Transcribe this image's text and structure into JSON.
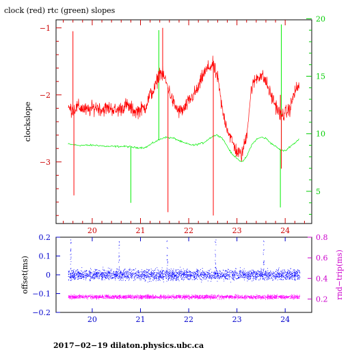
{
  "chart_data": [
    {
      "type": "line",
      "title": "clock (red) rtc (green) slopes",
      "ylabel": "clockslope",
      "x_ticks": [
        20,
        21,
        22,
        23,
        24
      ],
      "xlim": [
        19.25,
        24.55
      ],
      "y_left_ticks": [
        -1,
        -2,
        -3
      ],
      "ylim_left": [
        -3.92,
        -0.88
      ],
      "y_right_ticks": [
        5,
        10,
        15,
        20
      ],
      "ylim_right": [
        2.2,
        19.9
      ],
      "series": [
        {
          "name": "clock",
          "axis": "left",
          "color": "#ff0000",
          "x": [
            19.5,
            19.6,
            19.7,
            19.8,
            19.9,
            20.0,
            20.1,
            20.2,
            20.3,
            20.4,
            20.5,
            20.6,
            20.7,
            20.8,
            20.9,
            21.0,
            21.1,
            21.2,
            21.3,
            21.4,
            21.5,
            21.6,
            21.7,
            21.8,
            21.9,
            22.0,
            22.1,
            22.2,
            22.3,
            22.4,
            22.5,
            22.6,
            22.7,
            22.8,
            22.9,
            23.0,
            23.1,
            23.2,
            23.3,
            23.4,
            23.5,
            23.6,
            23.7,
            23.8,
            23.9,
            24.0,
            24.1,
            24.2,
            24.3
          ],
          "y": [
            -2.2,
            -2.22,
            -2.18,
            -2.2,
            -2.24,
            -2.2,
            -2.18,
            -2.22,
            -2.2,
            -2.2,
            -2.24,
            -2.2,
            -2.15,
            -2.2,
            -2.25,
            -2.22,
            -2.18,
            -2.0,
            -1.9,
            -1.65,
            -1.75,
            -1.95,
            -2.15,
            -2.25,
            -2.22,
            -2.1,
            -2.0,
            -1.9,
            -1.7,
            -1.6,
            -1.55,
            -1.75,
            -2.25,
            -2.5,
            -2.7,
            -2.85,
            -2.9,
            -2.6,
            -1.9,
            -1.75,
            -1.7,
            -1.8,
            -2.0,
            -2.15,
            -2.3,
            -2.28,
            -2.2,
            -1.95,
            -1.85
          ],
          "spikes": [
            [
              19.6,
              -1.05
            ],
            [
              19.62,
              -3.5
            ],
            [
              21.46,
              -1.0
            ],
            [
              21.57,
              -3.75
            ],
            [
              22.51,
              -3.8
            ],
            [
              23.9,
              -2.0
            ],
            [
              23.92,
              -3.1
            ]
          ]
        },
        {
          "name": "rtc",
          "axis": "right",
          "color": "#00ee00",
          "x": [
            19.5,
            19.7,
            19.9,
            20.1,
            20.3,
            20.5,
            20.7,
            20.9,
            21.1,
            21.3,
            21.5,
            21.7,
            21.9,
            22.1,
            22.3,
            22.5,
            22.6,
            22.7,
            22.8,
            22.9,
            23.0,
            23.1,
            23.2,
            23.3,
            23.4,
            23.5,
            23.6,
            23.7,
            23.8,
            23.9,
            24.0,
            24.1,
            24.2,
            24.3
          ],
          "y": [
            9.1,
            9.0,
            9.0,
            9.0,
            8.9,
            8.9,
            8.9,
            8.8,
            8.8,
            9.3,
            9.7,
            9.6,
            9.2,
            9.0,
            9.2,
            9.8,
            9.9,
            9.6,
            8.9,
            8.2,
            7.9,
            7.5,
            8.0,
            9.0,
            9.5,
            9.7,
            9.6,
            9.2,
            8.9,
            8.6,
            8.5,
            8.9,
            9.2,
            9.6
          ],
          "spikes": [
            [
              20.8,
              4.0
            ],
            [
              21.38,
              19.0
            ],
            [
              23.9,
              3.6
            ],
            [
              23.92,
              19.5
            ]
          ]
        }
      ]
    },
    {
      "type": "scatter",
      "xlabel": "",
      "ylabel": "offset(ms)",
      "ylabel_right": "rnd−trip(ms)",
      "x_ticks": [
        20,
        21,
        22,
        23,
        24
      ],
      "xlim": [
        19.25,
        24.55
      ],
      "y_left_ticks": [
        "0.2",
        "0.1",
        "0",
        "−0.1",
        "−0.2"
      ],
      "y_left_tick_values": [
        0.2,
        0.1,
        0,
        -0.1,
        -0.2
      ],
      "ylim_left": [
        -0.2,
        0.2
      ],
      "y_right_ticks": [
        "0.8",
        "0.6",
        "0.4",
        "0.2"
      ],
      "y_right_tick_values": [
        0.8,
        0.6,
        0.4,
        0.2
      ],
      "ylim_right": [
        0.07,
        0.8
      ],
      "series": [
        {
          "name": "offset",
          "axis": "left",
          "color": "#0000ff",
          "x_range": [
            19.5,
            24.3
          ],
          "center": 0.0,
          "spread": 0.03,
          "spike_times": [
            19.55,
            20.55,
            21.55,
            22.55,
            23.55
          ],
          "spike_top": 0.19
        },
        {
          "name": "rnd-trip",
          "axis": "right",
          "color": "#ff00ff",
          "x_range": [
            19.5,
            24.3
          ],
          "center": 0.22,
          "spread": 0.02
        }
      ]
    }
  ],
  "colors": {
    "left_axis": "#cc0000",
    "right_axis_top": "#00cc00",
    "bottom_left_axis": "#0000cc",
    "bottom_right_axis": "#cc00cc",
    "frame": "#000000"
  },
  "footer": "2017−02−19  dilaton.physics.ubc.ca"
}
